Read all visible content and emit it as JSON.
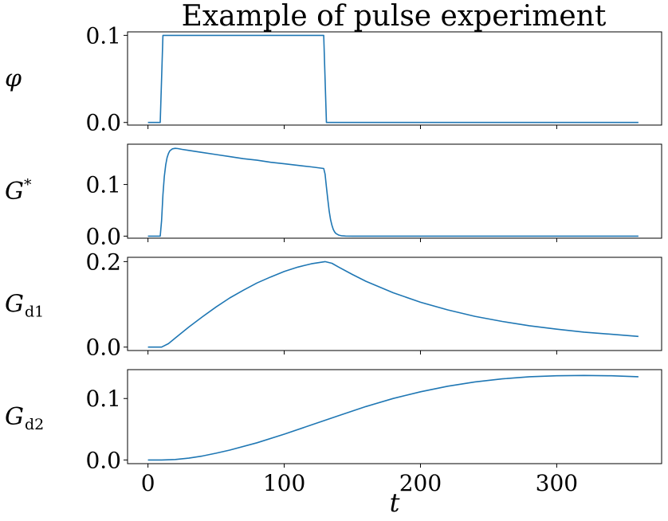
{
  "chart_data": {
    "type": "line",
    "title": "Example of pulse experiment",
    "xlabel": "t",
    "xlim": [
      -15,
      377
    ],
    "xticks": [
      0,
      100,
      200,
      300
    ],
    "xtick_labels": [
      "0",
      "100",
      "200",
      "300"
    ],
    "line_color": "#1f77b4",
    "panels": [
      {
        "ylabel": "φ",
        "ylabel_sub": "",
        "ylabel_sup": "",
        "ylim": [
          -0.003,
          0.104
        ],
        "yticks": [
          0.0,
          0.1
        ],
        "ytick_labels": [
          "0.0",
          "0.1"
        ],
        "x": [
          0,
          9,
          11,
          129,
          131,
          360
        ],
        "y": [
          0.0,
          0.0,
          0.1,
          0.1,
          0.0,
          0.0
        ]
      },
      {
        "ylabel": "G",
        "ylabel_sub": "",
        "ylabel_sup": "*",
        "ylim": [
          -0.004,
          0.178
        ],
        "yticks": [
          0.0,
          0.1
        ],
        "ytick_labels": [
          "0.0",
          "0.1"
        ],
        "x": [
          0,
          9,
          10,
          11,
          12,
          13,
          14,
          15,
          16,
          18,
          20,
          22,
          25,
          30,
          40,
          50,
          60,
          70,
          80,
          90,
          100,
          110,
          120,
          129,
          130,
          131,
          132,
          133,
          134,
          135,
          136,
          137,
          138,
          140,
          142,
          145,
          150,
          200,
          250,
          300,
          360
        ],
        "y": [
          0.0,
          0.0,
          0.03,
          0.08,
          0.115,
          0.138,
          0.152,
          0.16,
          0.165,
          0.169,
          0.17,
          0.1695,
          0.168,
          0.166,
          0.162,
          0.158,
          0.154,
          0.15,
          0.147,
          0.143,
          0.14,
          0.137,
          0.134,
          0.131,
          0.12,
          0.095,
          0.07,
          0.048,
          0.032,
          0.021,
          0.013,
          0.008,
          0.005,
          0.002,
          0.0008,
          0.0002,
          0.0,
          0.0,
          0.0,
          0.0,
          0.0
        ]
      },
      {
        "ylabel": "G",
        "ylabel_sub": "d1",
        "ylabel_sup": "",
        "ylim": [
          -0.008,
          0.21
        ],
        "yticks": [
          0.0,
          0.2
        ],
        "ytick_labels": [
          "0.0",
          "0.2"
        ],
        "x": [
          0,
          10,
          15,
          20,
          30,
          40,
          50,
          60,
          70,
          80,
          90,
          100,
          110,
          120,
          130,
          135,
          140,
          150,
          160,
          180,
          200,
          220,
          240,
          260,
          280,
          300,
          320,
          340,
          360
        ],
        "y": [
          0.0,
          0.0,
          0.008,
          0.021,
          0.047,
          0.071,
          0.094,
          0.115,
          0.133,
          0.15,
          0.164,
          0.177,
          0.187,
          0.195,
          0.2,
          0.196,
          0.187,
          0.17,
          0.154,
          0.127,
          0.105,
          0.087,
          0.072,
          0.06,
          0.05,
          0.042,
          0.035,
          0.03,
          0.025
        ]
      },
      {
        "ylabel": "G",
        "ylabel_sub": "d2",
        "ylabel_sup": "",
        "ylim": [
          -0.006,
          0.147
        ],
        "yticks": [
          0.0,
          0.1
        ],
        "ytick_labels": [
          "0.0",
          "0.1"
        ],
        "x": [
          0,
          10,
          20,
          30,
          40,
          50,
          60,
          80,
          100,
          120,
          140,
          160,
          180,
          200,
          220,
          240,
          260,
          280,
          300,
          320,
          340,
          360
        ],
        "y": [
          0.0,
          0.0,
          0.0008,
          0.003,
          0.0065,
          0.011,
          0.016,
          0.028,
          0.042,
          0.057,
          0.072,
          0.087,
          0.1,
          0.111,
          0.12,
          0.127,
          0.132,
          0.1355,
          0.137,
          0.1375,
          0.137,
          0.1355
        ]
      }
    ]
  }
}
